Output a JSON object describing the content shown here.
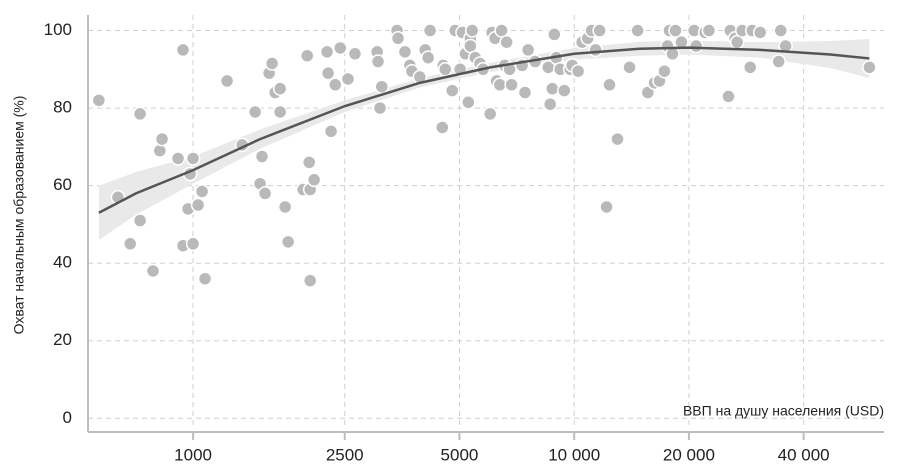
{
  "chart_data": {
    "type": "scatter",
    "y_label": "Охват начальным образованием (%)",
    "x_label": "ВВП на душу населения (USD)",
    "x_log": true,
    "grid": true,
    "color": "#b9b9b9",
    "xlim": [
      530,
      65000
    ],
    "xticks": [
      1000,
      2500,
      5000,
      {
        "value": 10000,
        "label": "10 000"
      },
      {
        "value": 20000,
        "label": "20 000"
      },
      {
        "value": 40000,
        "label": "40 000"
      }
    ],
    "ylim": [
      -2.5,
      104
    ],
    "yticks": [
      0,
      20,
      40,
      60,
      80,
      100
    ],
    "x": [
      566,
      635,
      684,
      726,
      726,
      785,
      818,
      829,
      913,
      941,
      941,
      970,
      982,
      1000,
      1000,
      1031,
      1056,
      1075,
      1228,
      1345,
      1455,
      1499,
      1517,
      1545,
      1583,
      1612,
      1642,
      1692,
      1692,
      1744,
      1776,
      1944,
      1993,
      2017,
      2029,
      2029,
      2078,
      2247,
      2261,
      2302,
      2361,
      2433,
      2550,
      2660,
      3040,
      3057,
      3094,
      3127,
      3429,
      3450,
      3597,
      3706,
      3751,
      3936,
      4065,
      4139,
      4187,
      4507,
      4534,
      4589,
      4786,
      4874,
      5020,
      5090,
      5182,
      5275,
      5340,
      5340,
      5400,
      5500,
      5660,
      5765,
      6020,
      6090,
      6200,
      6260,
      6380,
      6450,
      6570,
      6650,
      6770,
      6850,
      7300,
      7430,
      7570,
      7900,
      8550,
      8650,
      8760,
      8870,
      8980,
      9190,
      9420,
      9760,
      9880,
      10240,
      10490,
      10850,
      11110,
      11380,
      11660,
      12160,
      12380,
      12990,
      13970,
      14670,
      15600,
      16250,
      16740,
      17250,
      17570,
      17780,
      18110,
      18440,
      19120,
      20640,
      20900,
      22060,
      22570,
      25400,
      25670,
      26440,
      26770,
      27600,
      28960,
      29310,
      30770,
      34400,
      34830,
      35870,
      59500
    ],
    "values": [
      82,
      57,
      45,
      78.5,
      51,
      38,
      69,
      72,
      67,
      44.5,
      95,
      54,
      63,
      67,
      45,
      55,
      58.5,
      36,
      87,
      70.5,
      79,
      60.5,
      67.5,
      58,
      89,
      91.5,
      84,
      85,
      79,
      54.5,
      45.5,
      59,
      93.5,
      66,
      59,
      35.5,
      61.5,
      94.5,
      89,
      74,
      86,
      95.5,
      87.5,
      94,
      94.5,
      92,
      80,
      85.5,
      100,
      98,
      94.5,
      91,
      89.5,
      88,
      95,
      93,
      100,
      75,
      91,
      90,
      84.5,
      100,
      90,
      99.5,
      94,
      81.5,
      98,
      96,
      100,
      93,
      91.5,
      90,
      78.5,
      99.5,
      98,
      87,
      86,
      100,
      91,
      97,
      90,
      86,
      91,
      84,
      95,
      92,
      90.5,
      81,
      85,
      99,
      93,
      90,
      84.5,
      90,
      91,
      89.5,
      97,
      98,
      100,
      95,
      100,
      54.5,
      86,
      72,
      90.5,
      100,
      84,
      86.5,
      87,
      89.5,
      96,
      100,
      94,
      100,
      97,
      100,
      96,
      99.5,
      100,
      83,
      100,
      98,
      97,
      100,
      90.5,
      100,
      99.5,
      92,
      100,
      96,
      90.5
    ],
    "fit": {
      "color": "#555555",
      "band_color": "#e9e9e9",
      "x": [
        566,
        708,
        1000,
        1499,
        2500,
        3936,
        6020,
        10000,
        14840,
        20000,
        30770,
        46990,
        59500
      ],
      "values": [
        53,
        58,
        64,
        72,
        80.5,
        86.5,
        90.5,
        94,
        95.3,
        95.6,
        95,
        93.8,
        92.8
      ],
      "lower": [
        46,
        52.5,
        60.5,
        69.5,
        79,
        85.3,
        89.3,
        92.5,
        93.5,
        93.8,
        93,
        90.3,
        87.8
      ],
      "upper": [
        60,
        63.5,
        67.5,
        74.5,
        82,
        87.7,
        91.7,
        95.5,
        97.1,
        97.4,
        97,
        97.3,
        97.8
      ]
    }
  }
}
